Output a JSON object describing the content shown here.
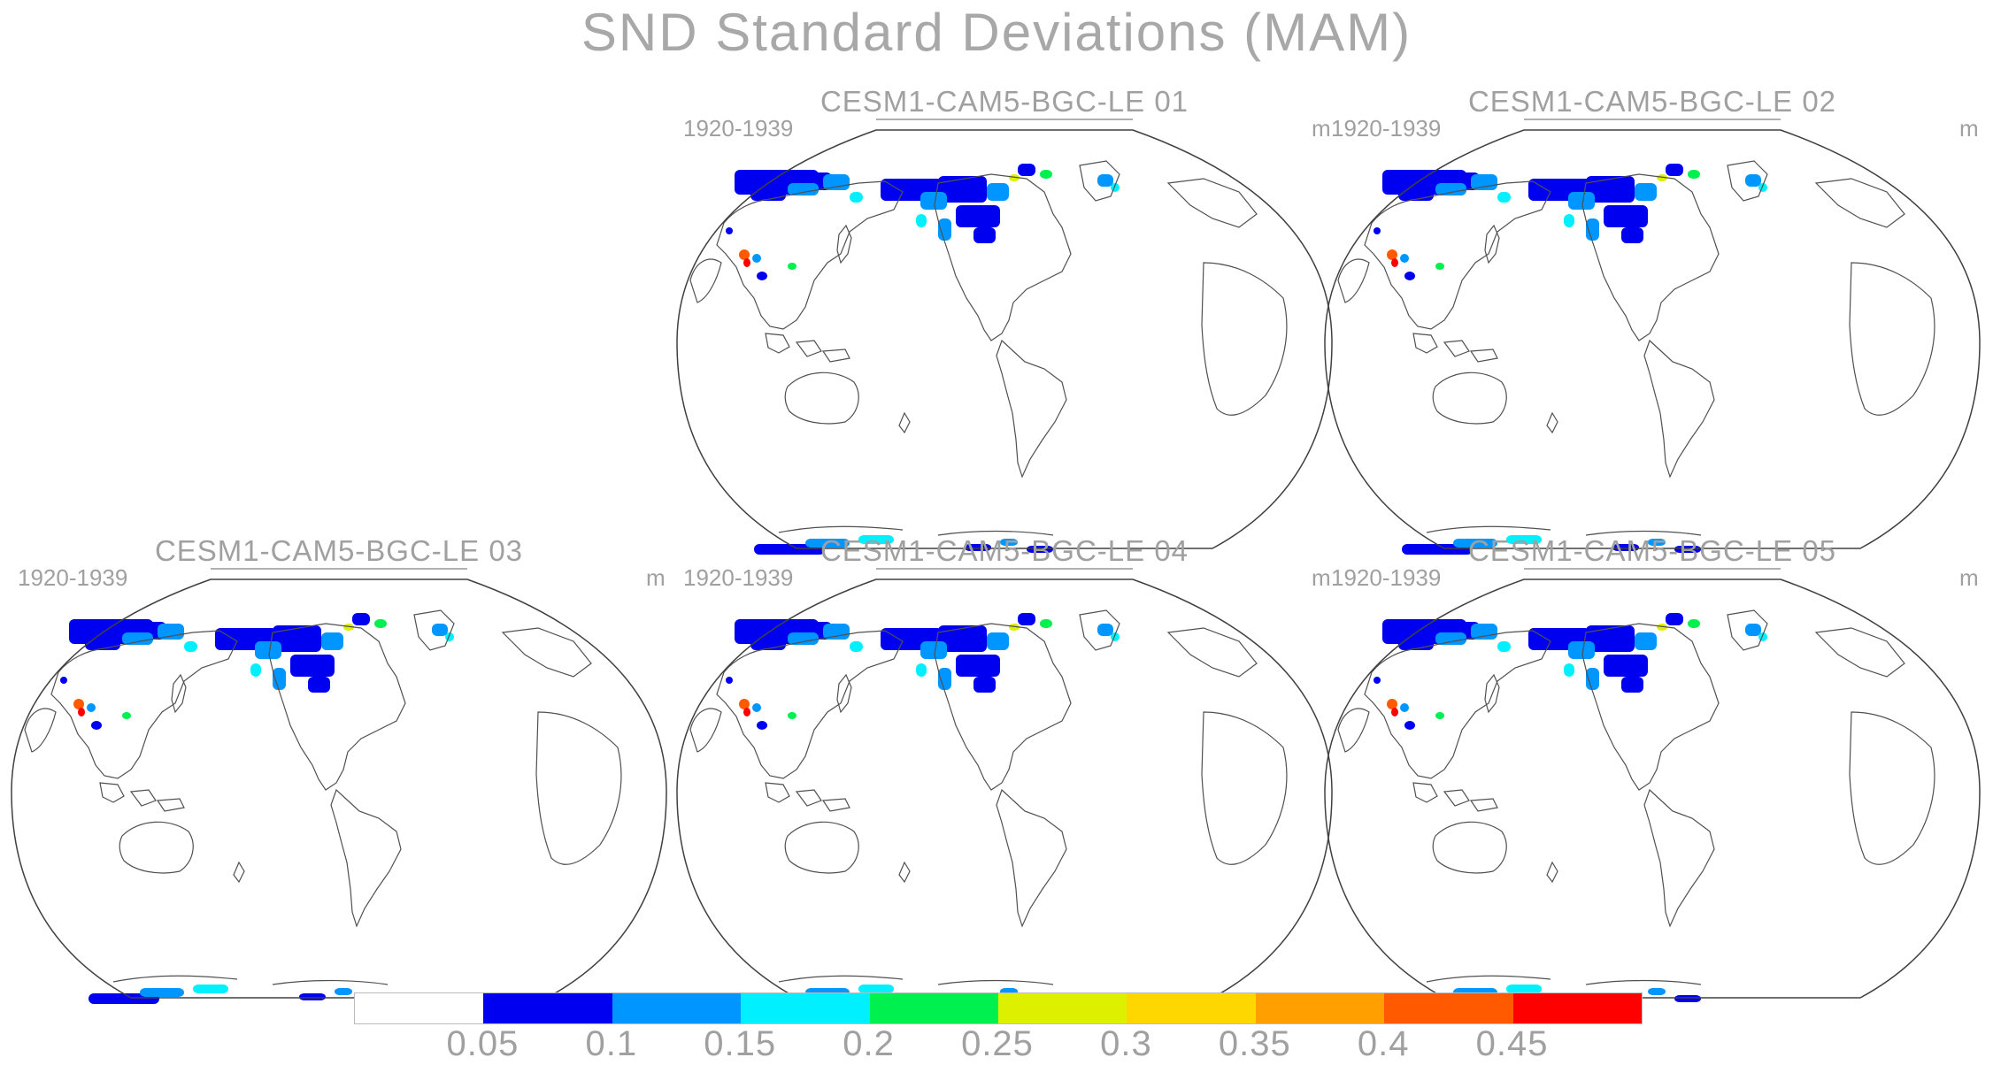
{
  "title": "SND Standard Deviations (MAM)",
  "panels": [
    {
      "title": "CESM1-CAM5-BGC-LE 01",
      "period": "1920-1939",
      "units": "m"
    },
    {
      "title": "CESM1-CAM5-BGC-LE 02",
      "period": "1920-1939",
      "units": "m"
    },
    {
      "title": "CESM1-CAM5-BGC-LE 03",
      "period": "1920-1939",
      "units": "m"
    },
    {
      "title": "CESM1-CAM5-BGC-LE 04",
      "period": "1920-1939",
      "units": "m"
    },
    {
      "title": "CESM1-CAM5-BGC-LE 05",
      "period": "1920-1939",
      "units": "m"
    }
  ],
  "colorbar": {
    "colors": [
      "#ffffff",
      "#0000f0",
      "#0096ff",
      "#00f0ff",
      "#00f050",
      "#dcf000",
      "#ffd700",
      "#ffa000",
      "#ff5a00",
      "#ff0000"
    ],
    "labels": [
      "0.05",
      "0.1",
      "0.15",
      "0.2",
      "0.25",
      "0.3",
      "0.35",
      "0.4",
      "0.45"
    ]
  }
}
